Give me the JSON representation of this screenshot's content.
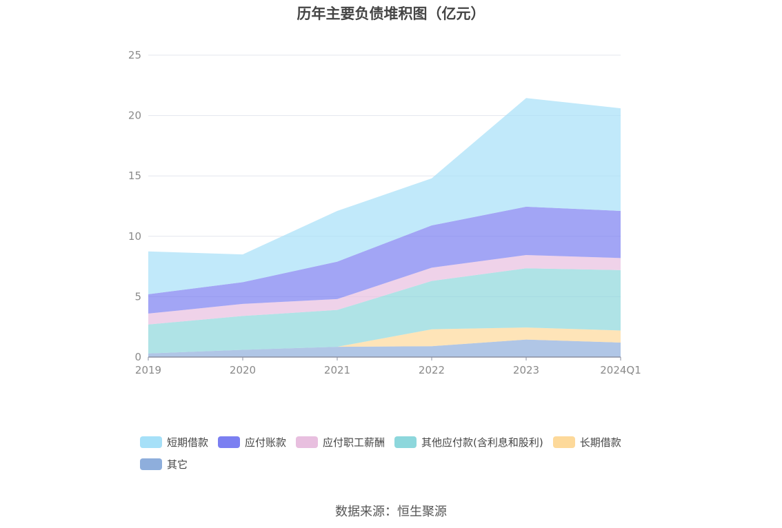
{
  "chart_data": {
    "type": "area",
    "stacked": true,
    "title": "历年主要负债堆积图（亿元）",
    "categories": [
      "2019",
      "2020",
      "2021",
      "2022",
      "2023",
      "2024Q1"
    ],
    "ylim": [
      0,
      25
    ],
    "yticks": [
      "0",
      "5",
      "10",
      "15",
      "20",
      "25"
    ],
    "grid": true,
    "legend_position": "bottom",
    "series": [
      {
        "name": "其它",
        "color": "#8eaedc",
        "values": [
          0.3,
          0.6,
          0.85,
          0.9,
          1.45,
          1.2
        ]
      },
      {
        "name": "长期借款",
        "color": "#fdd99a",
        "values": [
          0,
          0,
          0,
          1.4,
          1.0,
          1.0
        ]
      },
      {
        "name": "其他应付款(含利息和股利)",
        "color": "#8dd7dc",
        "values": [
          2.4,
          2.8,
          3.05,
          4.0,
          4.9,
          5.0
        ]
      },
      {
        "name": "应付职工薪酬",
        "color": "#e8bfdf",
        "values": [
          0.9,
          1.0,
          0.9,
          1.1,
          1.1,
          1.0
        ]
      },
      {
        "name": "应付账款",
        "color": "#7b7ff1",
        "values": [
          1.6,
          1.8,
          3.1,
          3.5,
          4.0,
          3.9
        ]
      },
      {
        "name": "短期借款",
        "color": "#a6e0f8",
        "values": [
          3.55,
          2.3,
          4.2,
          3.9,
          9.0,
          8.5
        ]
      }
    ]
  },
  "legend_order": [
    5,
    4,
    3,
    2,
    1,
    0
  ],
  "source": "数据来源：恒生聚源"
}
